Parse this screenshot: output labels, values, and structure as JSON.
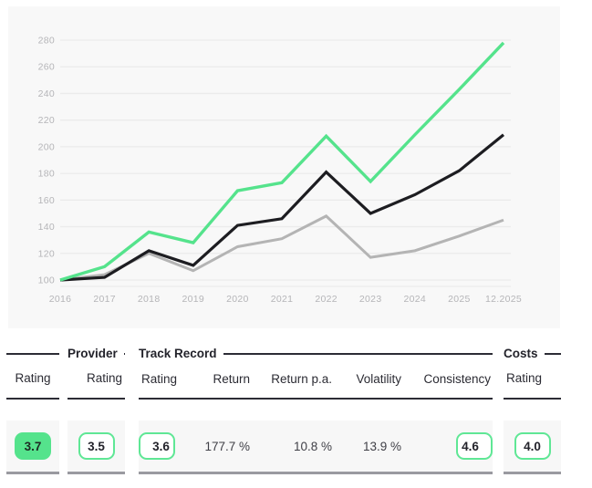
{
  "chart_data": {
    "type": "line",
    "title": "",
    "xlabel": "",
    "ylabel": "",
    "x_labels": [
      "2016",
      "2017",
      "2018",
      "2019",
      "2020",
      "2021",
      "2022",
      "2023",
      "2024",
      "2025",
      "12.2025"
    ],
    "y_ticks": [
      100,
      120,
      140,
      160,
      180,
      200,
      220,
      240,
      260,
      280
    ],
    "ylim": [
      95,
      290
    ],
    "grid": "horizontal",
    "legend": "none",
    "series": [
      {
        "name": "green-line",
        "color": "#55e38c",
        "stroke_width": 3.4,
        "values": [
          100,
          110,
          136,
          128,
          167,
          173,
          208,
          174,
          209,
          243,
          278
        ]
      },
      {
        "name": "black-line",
        "color": "#1d1d21",
        "stroke_width": 3.2,
        "values": [
          100,
          102,
          122,
          111,
          141,
          146,
          181,
          150,
          164,
          182,
          209
        ]
      },
      {
        "name": "gray-line",
        "color": "#b4b4b4",
        "stroke_width": 3,
        "values": [
          100,
          104,
          120,
          107,
          125,
          131,
          148,
          117,
          122,
          133,
          145
        ]
      }
    ],
    "colors": {
      "panel_bg": "#f8f8f8",
      "grid": "#ebebeb",
      "axis_label": "#b5b5b8"
    }
  },
  "table": {
    "groups": [
      {
        "title": "",
        "columns": [
          {
            "header": "Rating",
            "value": "3.7",
            "badge": "filled"
          }
        ]
      },
      {
        "title": "Provider",
        "columns": [
          {
            "header": "Rating",
            "value": "3.5",
            "badge": "outline"
          }
        ]
      },
      {
        "title": "Track Record",
        "columns": [
          {
            "header": "Rating",
            "value": "3.6",
            "badge": "outline"
          },
          {
            "header": "Return",
            "value": "177.7 %"
          },
          {
            "header": "Return p.a.",
            "value": "10.8 %"
          },
          {
            "header": "Volatility",
            "value": "13.9 %"
          },
          {
            "header": "Consistency",
            "value": "4.6",
            "badge": "outline"
          }
        ]
      },
      {
        "title": "Costs",
        "columns": [
          {
            "header": "Rating",
            "value": "4.0",
            "badge": "outline"
          }
        ]
      }
    ],
    "colors": {
      "badge_fill": "#55e38c",
      "badge_outline_border": "#5fe795",
      "header_rule": "#2c2c35",
      "slab_bg": "#f7f7f7",
      "slab_border": "#9a9aa0"
    }
  }
}
